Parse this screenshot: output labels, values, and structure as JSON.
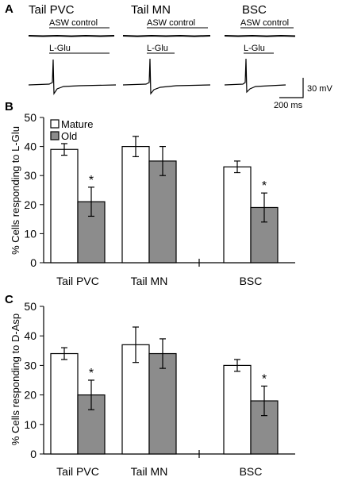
{
  "panels": {
    "a": "A",
    "b": "B",
    "c": "C"
  },
  "traces": {
    "titles": [
      "Tail PVC",
      "Tail MN",
      "BSC"
    ],
    "control_label": "ASW control",
    "glu_label": "L-Glu",
    "scalebar_v": "30 mV",
    "scalebar_h": "200 ms"
  },
  "chart_data": [
    {
      "type": "bar",
      "categories": [
        "Tail PVC",
        "Tail MN",
        "BSC"
      ],
      "series": [
        {
          "name": "Mature",
          "values": [
            39,
            40,
            33
          ],
          "errors": [
            2,
            3.5,
            2
          ],
          "color": "#ffffff"
        },
        {
          "name": "Old",
          "values": [
            21,
            35,
            19
          ],
          "errors": [
            5,
            5,
            5
          ],
          "color": "#8c8c8c"
        }
      ],
      "significance": [
        "*",
        "",
        "*"
      ],
      "ylabel": "% Cells responding to L-Glu",
      "ylim": [
        0,
        50
      ],
      "yticks": [
        "0",
        "10",
        "20",
        "30",
        "40",
        "50"
      ],
      "legend": "top-left",
      "axis_break": true
    },
    {
      "type": "bar",
      "categories": [
        "Tail PVC",
        "Tail MN",
        "BSC"
      ],
      "series": [
        {
          "name": "Mature",
          "values": [
            34,
            37,
            30
          ],
          "errors": [
            2,
            6,
            2
          ],
          "color": "#ffffff"
        },
        {
          "name": "Old",
          "values": [
            20,
            34,
            18
          ],
          "errors": [
            5,
            5,
            5
          ],
          "color": "#8c8c8c"
        }
      ],
      "significance": [
        "*",
        "",
        "*"
      ],
      "ylabel": "% Cells responding to D-Asp",
      "ylim": [
        0,
        50
      ],
      "yticks": [
        "0",
        "10",
        "20",
        "30",
        "40",
        "50"
      ],
      "axis_break": true
    }
  ]
}
